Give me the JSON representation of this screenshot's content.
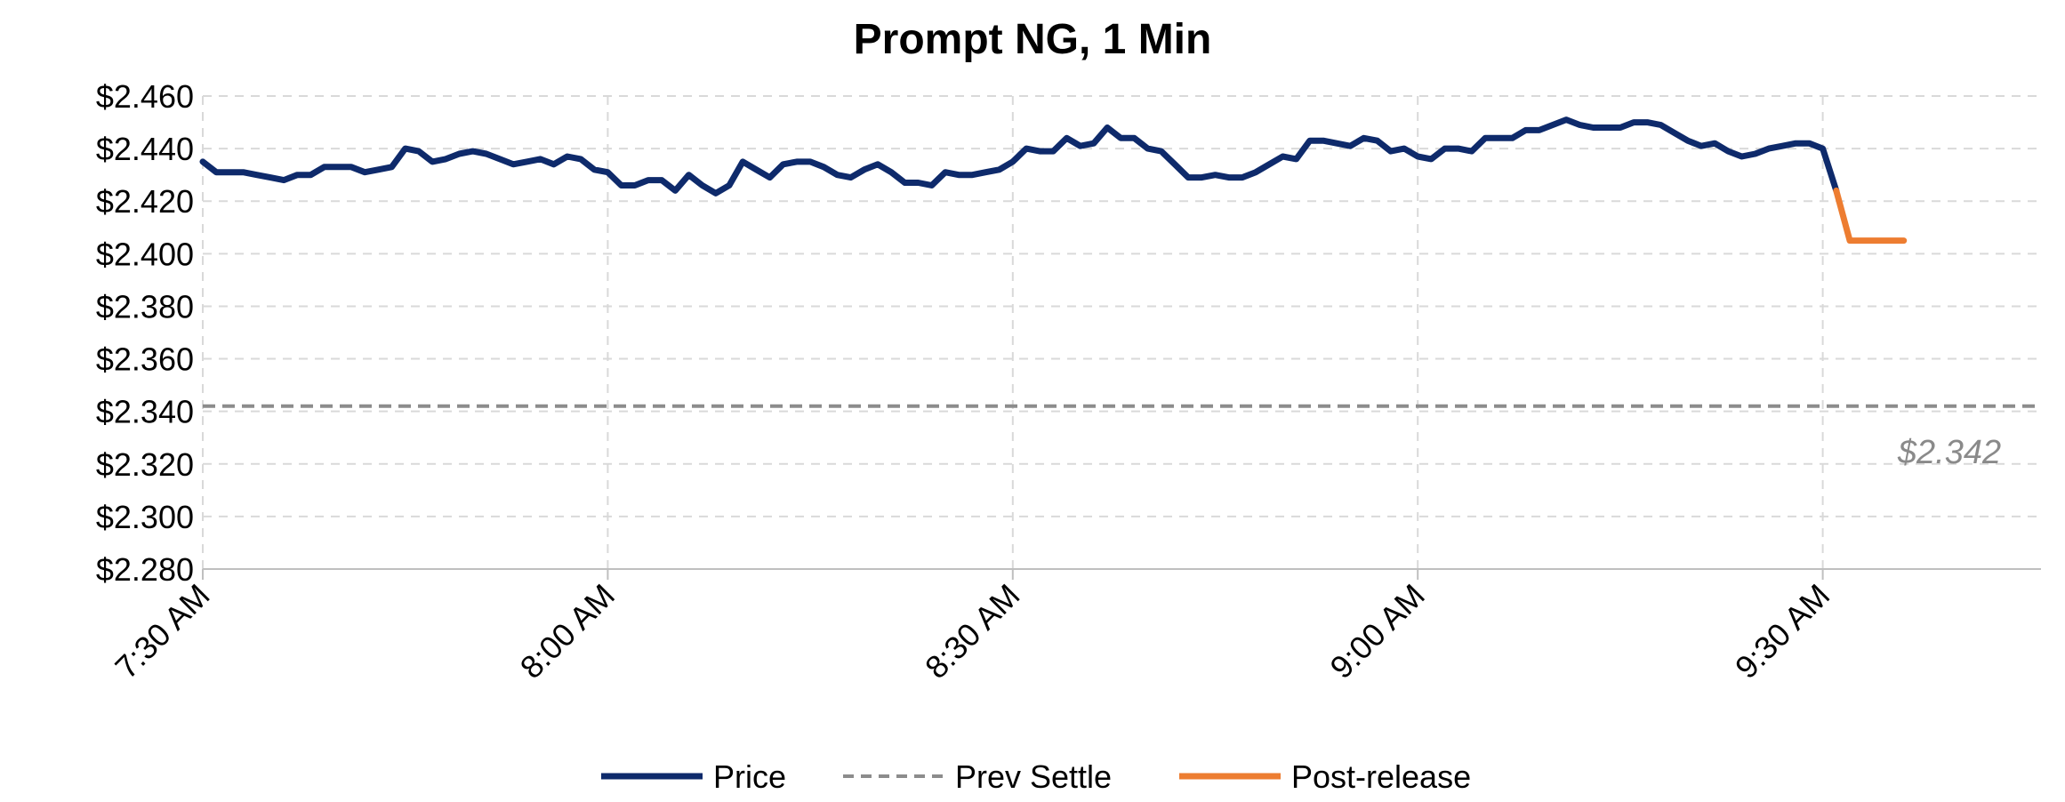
{
  "chart_data": {
    "type": "line",
    "title": "Prompt NG, 1 Min",
    "xlabel": "",
    "ylabel": "",
    "ylim": [
      2.28,
      2.46
    ],
    "ytick_step": 0.02,
    "y_tick_labels": [
      "$2.280",
      "$2.300",
      "$2.320",
      "$2.340",
      "$2.360",
      "$2.380",
      "$2.400",
      "$2.420",
      "$2.440",
      "$2.460"
    ],
    "x_minutes_range": [
      0,
      135
    ],
    "x_tick_labels": [
      "7:30 AM",
      "8:00 AM",
      "8:30 AM",
      "9:00 AM",
      "9:30 AM"
    ],
    "grid": true,
    "legend_position": "bottom",
    "series": [
      {
        "name": "Price",
        "color": "#0e2a6b",
        "x": [
          0,
          1,
          2,
          3,
          4,
          5,
          6,
          7,
          8,
          9,
          10,
          11,
          12,
          13,
          14,
          15,
          16,
          17,
          18,
          19,
          20,
          21,
          22,
          23,
          24,
          25,
          26,
          27,
          28,
          29,
          30,
          31,
          32,
          33,
          34,
          35,
          36,
          37,
          38,
          39,
          40,
          41,
          42,
          43,
          44,
          45,
          46,
          47,
          48,
          49,
          50,
          51,
          52,
          53,
          54,
          55,
          56,
          57,
          58,
          59,
          60,
          61,
          62,
          63,
          64,
          65,
          66,
          67,
          68,
          69,
          70,
          71,
          72,
          73,
          74,
          75,
          76,
          77,
          78,
          79,
          80,
          81,
          82,
          83,
          84,
          85,
          86,
          87,
          88,
          89,
          90,
          91,
          92,
          93,
          94,
          95,
          96,
          97,
          98,
          99,
          100,
          101,
          102,
          103,
          104,
          105,
          106,
          107,
          108,
          109,
          110,
          111,
          112,
          113,
          114,
          115,
          116,
          117,
          118,
          119,
          120,
          121
        ],
        "values": [
          2.435,
          2.431,
          2.431,
          2.431,
          2.43,
          2.429,
          2.428,
          2.43,
          2.43,
          2.433,
          2.433,
          2.433,
          2.431,
          2.432,
          2.433,
          2.44,
          2.439,
          2.435,
          2.436,
          2.438,
          2.439,
          2.438,
          2.436,
          2.434,
          2.435,
          2.436,
          2.434,
          2.437,
          2.436,
          2.432,
          2.431,
          2.426,
          2.426,
          2.428,
          2.428,
          2.424,
          2.43,
          2.426,
          2.423,
          2.426,
          2.435,
          2.432,
          2.429,
          2.434,
          2.435,
          2.435,
          2.433,
          2.43,
          2.429,
          2.432,
          2.434,
          2.431,
          2.427,
          2.427,
          2.426,
          2.431,
          2.43,
          2.43,
          2.431,
          2.432,
          2.435,
          2.44,
          2.439,
          2.439,
          2.444,
          2.441,
          2.442,
          2.448,
          2.444,
          2.444,
          2.44,
          2.439,
          2.434,
          2.429,
          2.429,
          2.43,
          2.429,
          2.429,
          2.431,
          2.434,
          2.437,
          2.436,
          2.443,
          2.443,
          2.442,
          2.441,
          2.444,
          2.443,
          2.439,
          2.44,
          2.437,
          2.436,
          2.44,
          2.44,
          2.439,
          2.444,
          2.444,
          2.444,
          2.447,
          2.447,
          2.449,
          2.451,
          2.449,
          2.448,
          2.448,
          2.448,
          2.45,
          2.45,
          2.449,
          2.446,
          2.443,
          2.441,
          2.442,
          2.439,
          2.437,
          2.438,
          2.44,
          2.441,
          2.442,
          2.442,
          2.44,
          2.424
        ]
      },
      {
        "name": "Post-release",
        "color": "#ed7d31",
        "x": [
          121,
          122,
          123,
          124,
          125,
          126
        ],
        "values": [
          2.424,
          2.405,
          2.405,
          2.405,
          2.405,
          2.405
        ]
      }
    ],
    "reference_line": {
      "name": "Prev Settle",
      "value": 2.342,
      "color": "#8c8c8c",
      "label": "$2.342"
    }
  }
}
